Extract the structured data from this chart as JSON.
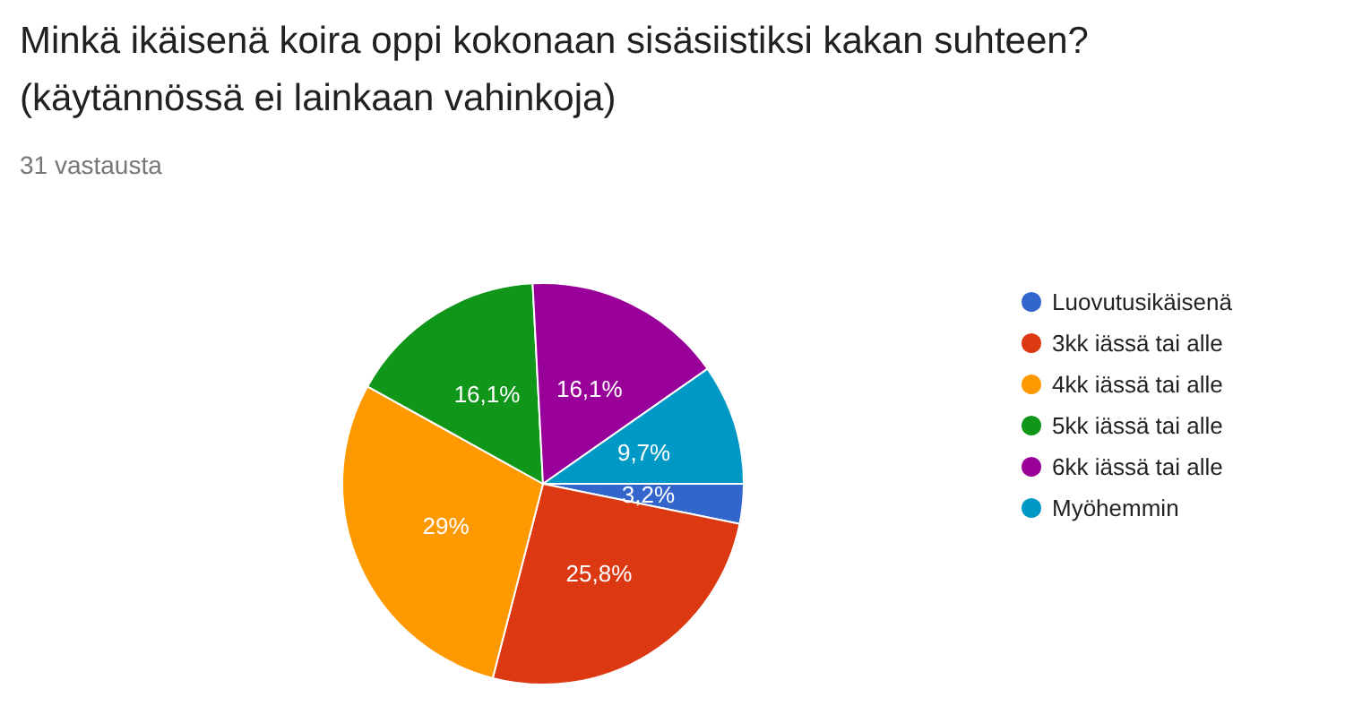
{
  "chart_data": {
    "type": "pie",
    "title": "Minkä ikäisenä koira oppi kokonaan sisäsiistiksi kakan suhteen?\n(käytännössä ei lainkaan vahinkoja)",
    "subtitle": "31 vastausta",
    "categories": [
      "Luovutusikäisenä",
      "3kk iässä tai alle",
      "4kk iässä tai alle",
      "5kk iässä tai alle",
      "6kk iässä tai alle",
      "Myöhemmin"
    ],
    "values": [
      3.2,
      25.8,
      29,
      16.1,
      16.1,
      9.7
    ],
    "colors": [
      "#3366cc",
      "#dc3912",
      "#ff9900",
      "#109618",
      "#990099",
      "#0099c6"
    ],
    "value_labels": [
      "3,2%",
      "25,8%",
      "29%",
      "16,1%",
      "16,1%",
      "9,7%"
    ],
    "legend": "right"
  }
}
